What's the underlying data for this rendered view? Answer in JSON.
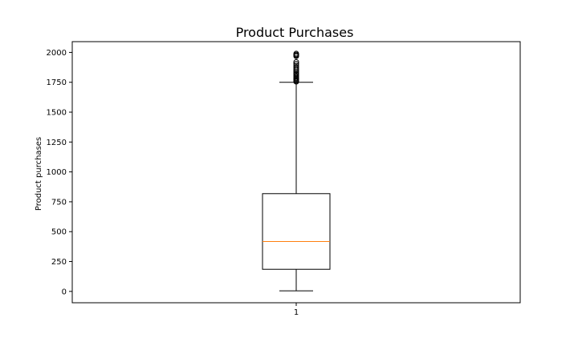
{
  "chart_data": {
    "type": "box",
    "title": "Product Purchases",
    "xlabel": "",
    "ylabel": "Product purchases",
    "ylim": [
      -95,
      2090
    ],
    "y_ticks": [
      0,
      250,
      500,
      750,
      1000,
      1250,
      1500,
      1750,
      2000
    ],
    "categories": [
      "1"
    ],
    "boxes": [
      {
        "category": "1",
        "whisker_low": 5,
        "q1": 185,
        "median": 418,
        "q3": 818,
        "whisker_high": 1750,
        "outliers": [
          1755,
          1762,
          1770,
          1778,
          1785,
          1795,
          1805,
          1815,
          1825,
          1838,
          1850,
          1862,
          1875,
          1890,
          1905,
          1920,
          1968,
          1975,
          1982,
          1990
        ]
      }
    ],
    "grid": false,
    "colors": {
      "median": "#ff7f0e",
      "box": "#000000"
    }
  }
}
